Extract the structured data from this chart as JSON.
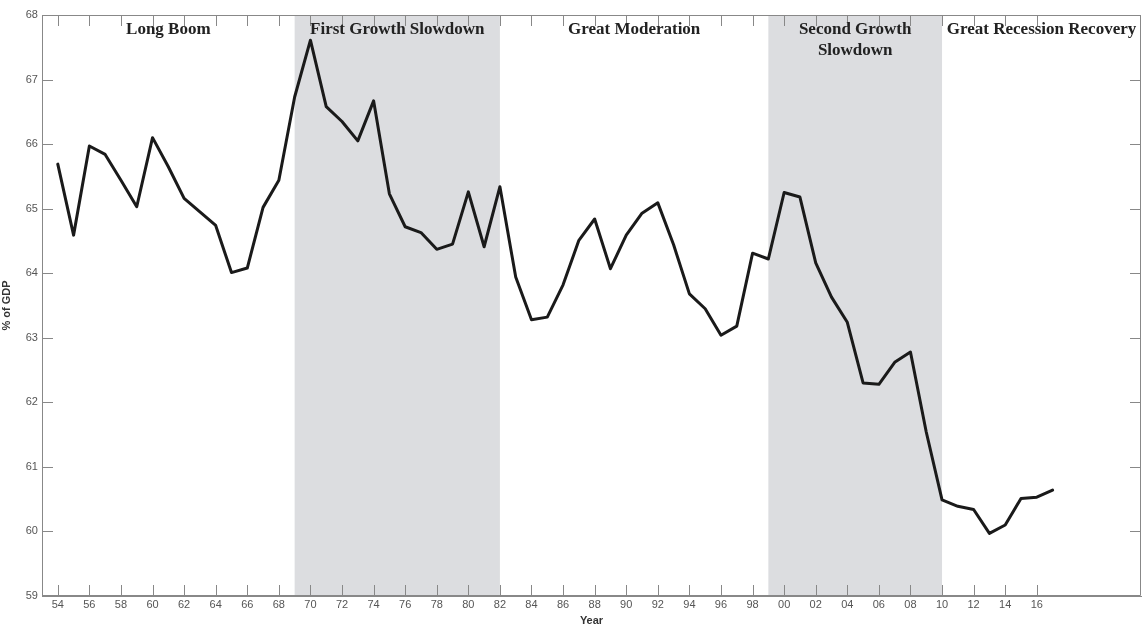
{
  "chart_data": {
    "type": "line",
    "xlabel": "Year",
    "ylabel": "% of GDP",
    "x": [
      1954,
      1955,
      1956,
      1957,
      1958,
      1959,
      1960,
      1961,
      1962,
      1963,
      1964,
      1965,
      1966,
      1967,
      1968,
      1969,
      1970,
      1971,
      1972,
      1973,
      1974,
      1975,
      1976,
      1977,
      1978,
      1979,
      1980,
      1981,
      1982,
      1983,
      1984,
      1985,
      1986,
      1987,
      1988,
      1989,
      1990,
      1991,
      1992,
      1993,
      1994,
      1995,
      1996,
      1997,
      1998,
      1999,
      2000,
      2001,
      2002,
      2003,
      2004,
      2005,
      2006,
      2007,
      2008,
      2009,
      2010,
      2011,
      2012,
      2013,
      2014,
      2015,
      2016,
      2017
    ],
    "series": [
      {
        "color": "#1a1a1a",
        "values": [
          65.69,
          64.59,
          65.97,
          65.84,
          65.44,
          65.03,
          66.1,
          65.65,
          65.16,
          64.95,
          64.74,
          64.01,
          64.08,
          65.02,
          65.44,
          66.73,
          67.61,
          66.58,
          66.35,
          66.05,
          66.67,
          65.23,
          64.72,
          64.63,
          64.37,
          64.45,
          65.26,
          64.41,
          65.34,
          63.94,
          63.28,
          63.32,
          63.82,
          64.51,
          64.84,
          64.07,
          64.59,
          64.93,
          65.09,
          64.44,
          63.68,
          63.45,
          63.04,
          63.18,
          64.31,
          64.22,
          65.25,
          65.18,
          64.16,
          63.63,
          63.24,
          62.3,
          62.28,
          62.62,
          62.78,
          61.54,
          60.49,
          60.39,
          60.34,
          59.97,
          60.1,
          60.51,
          60.53,
          60.64
        ]
      }
    ],
    "xlim": [
      1953,
      2022.6
    ],
    "xticks": [
      {
        "value": 1954,
        "label": "54"
      },
      {
        "value": 1956,
        "label": "56"
      },
      {
        "value": 1958,
        "label": "58"
      },
      {
        "value": 1960,
        "label": "60"
      },
      {
        "value": 1962,
        "label": "62"
      },
      {
        "value": 1964,
        "label": "64"
      },
      {
        "value": 1966,
        "label": "66"
      },
      {
        "value": 1968,
        "label": "68"
      },
      {
        "value": 1970,
        "label": "70"
      },
      {
        "value": 1972,
        "label": "72"
      },
      {
        "value": 1974,
        "label": "74"
      },
      {
        "value": 1976,
        "label": "76"
      },
      {
        "value": 1978,
        "label": "78"
      },
      {
        "value": 1980,
        "label": "80"
      },
      {
        "value": 1982,
        "label": "82"
      },
      {
        "value": 1984,
        "label": "84"
      },
      {
        "value": 1986,
        "label": "86"
      },
      {
        "value": 1988,
        "label": "88"
      },
      {
        "value": 1990,
        "label": "90"
      },
      {
        "value": 1992,
        "label": "92"
      },
      {
        "value": 1994,
        "label": "94"
      },
      {
        "value": 1996,
        "label": "96"
      },
      {
        "value": 1998,
        "label": "98"
      },
      {
        "value": 2000,
        "label": "00"
      },
      {
        "value": 2002,
        "label": "02"
      },
      {
        "value": 2004,
        "label": "04"
      },
      {
        "value": 2006,
        "label": "06"
      },
      {
        "value": 2008,
        "label": "08"
      },
      {
        "value": 2010,
        "label": "10"
      },
      {
        "value": 2012,
        "label": "12"
      },
      {
        "value": 2014,
        "label": "14"
      },
      {
        "value": 2016,
        "label": "16"
      }
    ],
    "ylim": [
      59,
      68
    ],
    "yticks": [
      59,
      60,
      61,
      62,
      63,
      64,
      65,
      66,
      67,
      68
    ],
    "bands": [
      {
        "axis": "x",
        "from": 1969,
        "to": 1982,
        "label": "First Growth Slowdown",
        "color": "#dcdde0"
      },
      {
        "axis": "x",
        "from": 1999,
        "to": 2010,
        "label": "Second Growth Slowdown",
        "color": "#dcdde0"
      }
    ],
    "annotations": [
      "Long Boom",
      "Great Moderation",
      "Great Recession Recovery"
    ],
    "grid": false,
    "legend": false,
    "marker": "none",
    "line_style": "solid"
  }
}
